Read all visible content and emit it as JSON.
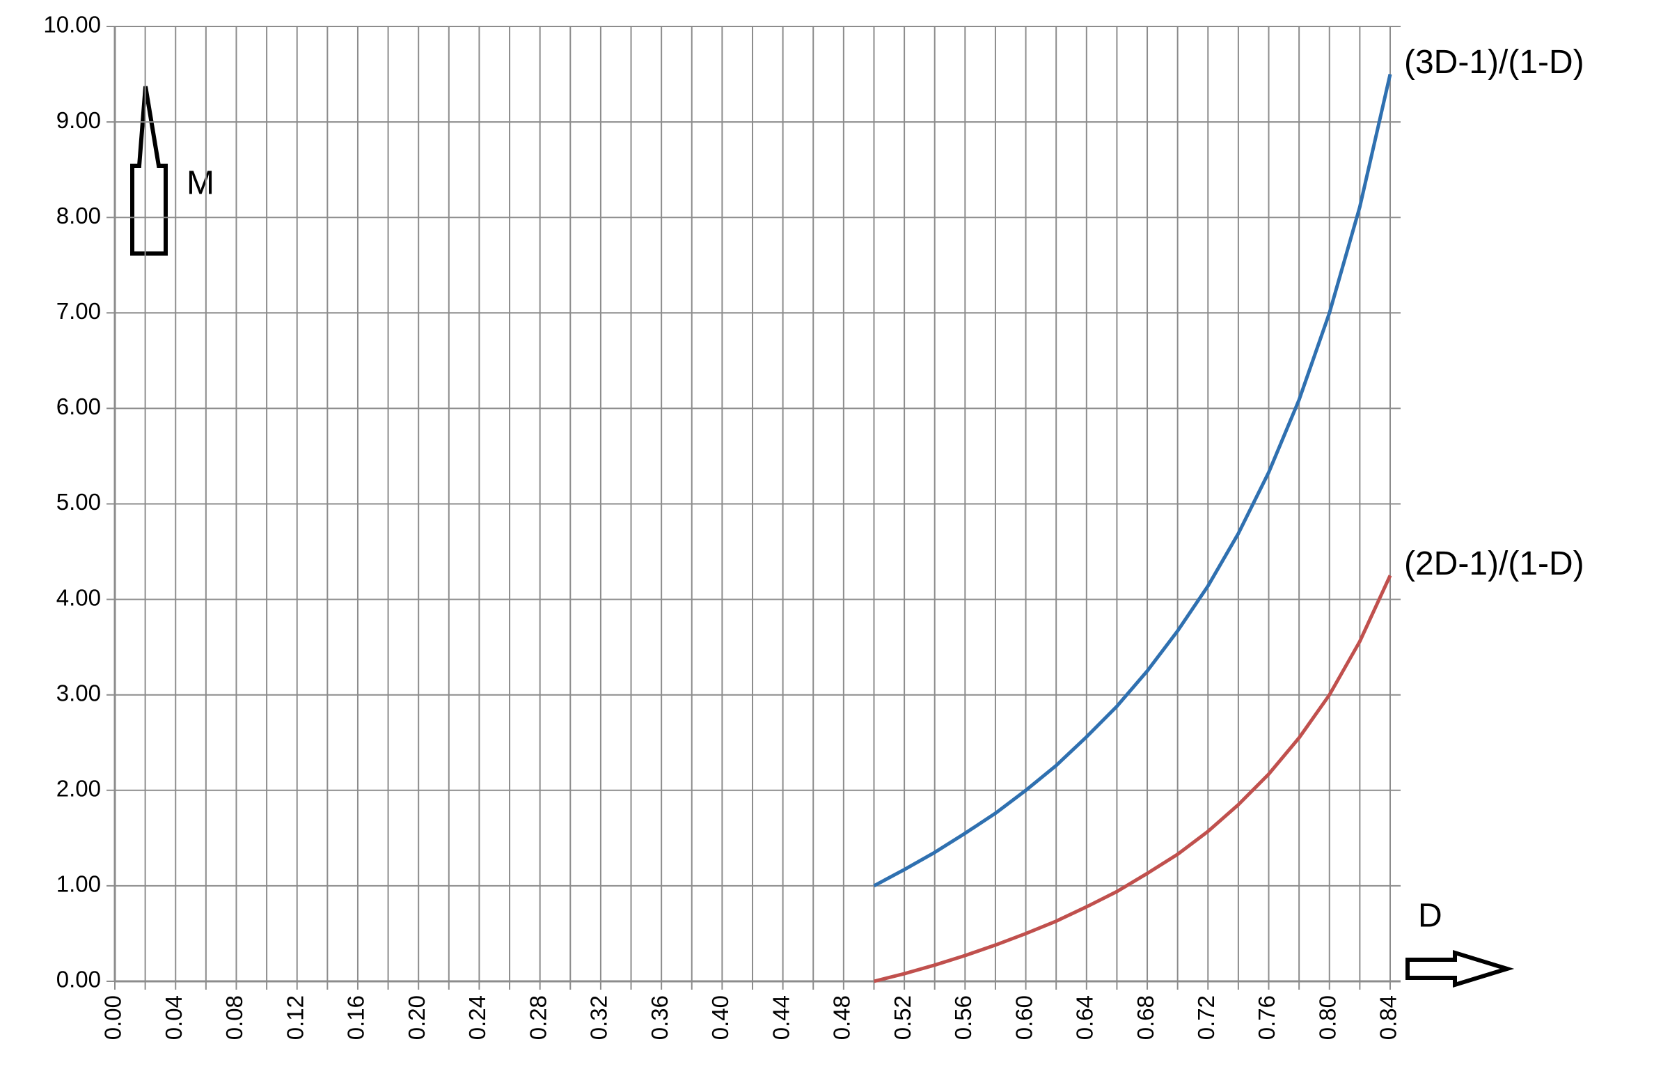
{
  "chart_data": {
    "type": "line",
    "x_label": "D",
    "y_label": "M",
    "x": [
      0.5,
      0.52,
      0.54,
      0.56,
      0.58,
      0.6,
      0.62,
      0.64,
      0.66,
      0.68,
      0.7,
      0.72,
      0.74,
      0.76,
      0.78,
      0.8,
      0.82,
      0.84
    ],
    "series": [
      {
        "name": "(3D-1)/(1-D)",
        "color": "#2f70b0",
        "values": [
          1.0,
          1.17,
          1.35,
          1.55,
          1.76,
          2.0,
          2.26,
          2.56,
          2.88,
          3.25,
          3.67,
          4.14,
          4.69,
          5.33,
          6.09,
          7.0,
          8.11,
          9.5
        ]
      },
      {
        "name": "(2D-1)/(1-D)",
        "color": "#c0504d",
        "values": [
          0.0,
          0.08,
          0.17,
          0.27,
          0.38,
          0.5,
          0.63,
          0.78,
          0.94,
          1.13,
          1.33,
          1.57,
          1.85,
          2.17,
          2.55,
          3.0,
          3.56,
          4.25
        ]
      }
    ],
    "xlim": [
      0,
      0.84
    ],
    "xticks": [
      {
        "value": 0,
        "label": "0.00"
      },
      {
        "value": 0.04,
        "label": "0.04"
      },
      {
        "value": 0.08,
        "label": "0.08"
      },
      {
        "value": 0.12,
        "label": "0.12"
      },
      {
        "value": 0.16,
        "label": "0.16"
      },
      {
        "value": 0.2,
        "label": "0.20"
      },
      {
        "value": 0.24,
        "label": "0.24"
      },
      {
        "value": 0.28,
        "label": "0.28"
      },
      {
        "value": 0.32,
        "label": "0.32"
      },
      {
        "value": 0.36,
        "label": "0.36"
      },
      {
        "value": 0.4,
        "label": "0.40"
      },
      {
        "value": 0.44,
        "label": "0.44"
      },
      {
        "value": 0.48,
        "label": "0.48"
      },
      {
        "value": 0.52,
        "label": "0.52"
      },
      {
        "value": 0.56,
        "label": "0.56"
      },
      {
        "value": 0.6,
        "label": "0.60"
      },
      {
        "value": 0.64,
        "label": "0.64"
      },
      {
        "value": 0.68,
        "label": "0.68"
      },
      {
        "value": 0.72,
        "label": "0.72"
      },
      {
        "value": 0.76,
        "label": "0.76"
      },
      {
        "value": 0.8,
        "label": "0.80"
      },
      {
        "value": 0.84,
        "label": "0.84"
      }
    ],
    "xminorticks": [
      0.02,
      0.06,
      0.1,
      0.14,
      0.18,
      0.22,
      0.26,
      0.3,
      0.34,
      0.38,
      0.42,
      0.46,
      0.5,
      0.54,
      0.58,
      0.62,
      0.66,
      0.7,
      0.74,
      0.78,
      0.82
    ],
    "ylim": [
      0,
      10
    ],
    "yticks": [
      {
        "value": 0,
        "label": "0.00"
      },
      {
        "value": 1,
        "label": "1.00"
      },
      {
        "value": 2,
        "label": "2.00"
      },
      {
        "value": 3,
        "label": "3.00"
      },
      {
        "value": 4,
        "label": "4.00"
      },
      {
        "value": 5,
        "label": "5.00"
      },
      {
        "value": 6,
        "label": "6.00"
      },
      {
        "value": 7,
        "label": "7.00"
      },
      {
        "value": 8,
        "label": "8.00"
      },
      {
        "value": 9,
        "label": "9.00"
      },
      {
        "value": 10,
        "label": "10.00"
      }
    ],
    "grid": true
  }
}
